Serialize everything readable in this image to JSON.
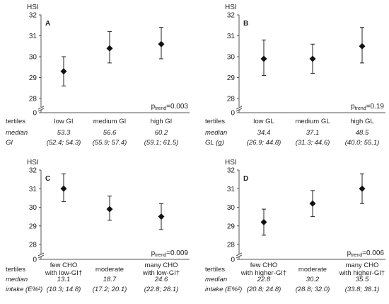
{
  "chart_data": [
    {
      "type": "scatter",
      "panel": "A",
      "ylabel": "HSI",
      "ylim": [
        27,
        32
      ],
      "yticks": [
        "28",
        "29",
        "30",
        "31",
        "32"
      ],
      "ytick_zero": "0",
      "tertiles_label": "tertiles",
      "categories": [
        [
          "low  GI"
        ],
        [
          "medium  GI"
        ],
        [
          "high GI"
        ]
      ],
      "values": [
        29.3,
        30.4,
        30.6
      ],
      "err_low": [
        28.6,
        29.7,
        29.9
      ],
      "err_high": [
        30.0,
        31.2,
        31.4
      ],
      "p_prefix": "p",
      "p_sub": "trend",
      "p_value": "=0.003",
      "median_label": [
        "median",
        "GI"
      ],
      "median_values": [
        "53.3",
        "56.6",
        "60.2"
      ],
      "median_ranges": [
        "(52.4; 54.3)",
        "(55.9; 57.4)",
        "(59.1; 61.5)"
      ]
    },
    {
      "type": "scatter",
      "panel": "B",
      "ylabel": "HSI",
      "ylim": [
        27,
        32
      ],
      "yticks": [
        "28",
        "29",
        "30",
        "31",
        "32"
      ],
      "ytick_zero": "0",
      "tertiles_label": "tertiles",
      "categories": [
        [
          "low  GL"
        ],
        [
          "medium  GL"
        ],
        [
          "high GL"
        ]
      ],
      "values": [
        29.9,
        29.9,
        30.5
      ],
      "err_low": [
        29.1,
        29.2,
        29.7
      ],
      "err_high": [
        30.8,
        30.6,
        31.4
      ],
      "p_prefix": "p",
      "p_sub": "trend",
      "p_value": "=0.19",
      "median_label": [
        "median",
        "GL (g)"
      ],
      "median_values": [
        "34.4",
        "37.1",
        "48.5"
      ],
      "median_ranges": [
        "(26.9; 44.8)",
        "(31.3; 44.6)",
        "(40.0; 55.1)"
      ]
    },
    {
      "type": "scatter",
      "panel": "C",
      "ylabel": "HSI",
      "ylim": [
        27,
        32
      ],
      "yticks": [
        "28",
        "29",
        "30",
        "31",
        "32"
      ],
      "ytick_zero": "0",
      "tertiles_label": "tertiles",
      "categories": [
        [
          "few CHO",
          "with low-GI†"
        ],
        [
          "moderate"
        ],
        [
          "many CHO",
          "with low-GI†"
        ]
      ],
      "values": [
        31.0,
        29.9,
        29.5
      ],
      "err_low": [
        30.3,
        29.3,
        28.8
      ],
      "err_high": [
        31.8,
        30.6,
        30.2
      ],
      "p_prefix": "p",
      "p_sub": "trend",
      "p_value": "=0.009",
      "median_label": [
        "median",
        "intake (E%²)"
      ],
      "median_values": [
        "13.1",
        "18.7",
        "24.6"
      ],
      "median_ranges": [
        "(10.3; 14.8)",
        "(17.2; 20.1)",
        "(22.8; 28.1)"
      ]
    },
    {
      "type": "scatter",
      "panel": "D",
      "ylabel": "HSI",
      "ylim": [
        27,
        32
      ],
      "yticks": [
        "28",
        "29",
        "30",
        "31",
        "32"
      ],
      "ytick_zero": "0",
      "tertiles_label": "tertiles",
      "categories": [
        [
          "few CHO",
          "with higher-GI†"
        ],
        [
          "moderate"
        ],
        [
          "many CHO",
          "with higher-GI†"
        ]
      ],
      "values": [
        29.2,
        30.2,
        31.0
      ],
      "err_low": [
        28.5,
        29.5,
        30.2
      ],
      "err_high": [
        29.9,
        30.9,
        31.8
      ],
      "p_prefix": "p",
      "p_sub": "trend",
      "p_value": "=0.006",
      "median_label": [
        "median",
        "intake (E%²)"
      ],
      "median_values": [
        "22.8",
        "30.2",
        "35.5"
      ],
      "median_ranges": [
        "(20.8; 24.8)",
        "(28.8; 32.0)",
        "(33.8; 38.1)"
      ]
    }
  ]
}
